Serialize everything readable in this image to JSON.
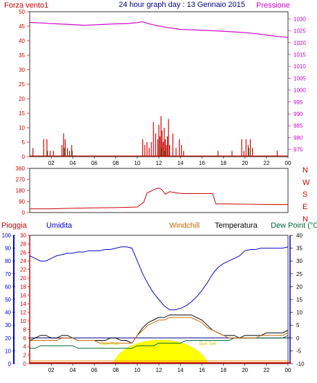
{
  "header": {
    "left_label": "Forza vento1",
    "title": "24 hour graph day : 13 Gennaio 2015",
    "right_label": "Pressione"
  },
  "colors": {
    "wind": "#cc0000",
    "gust_dark": "#000080",
    "gust_green": "#006600",
    "pressure": "#cc00cc",
    "direction": "#cc0000",
    "humidity": "#0000cc",
    "temperature": "#000000",
    "windchill": "#cc6600",
    "dewpoint": "#006633",
    "rain": "#cc0000",
    "sun": "#ffff00",
    "axis_left_blue": "#0000cc"
  },
  "legend_bottom": {
    "pioggia": "Pioggia",
    "umidita": "Umidita",
    "windchill": "Windchill",
    "temperatura": "Temperatura",
    "dewpoint": "Dew Point (°C"
  },
  "sun_labels": {
    "rise": "Sun Rise",
    "set": "Sun Set"
  },
  "x_ticks": [
    "02",
    "04",
    "06",
    "08",
    "10",
    "12",
    "14",
    "16",
    "18",
    "20",
    "22",
    "00"
  ],
  "x_bottom_ticks": [
    "02",
    "04",
    "06",
    "Sun R",
    "08",
    "10",
    "12",
    "14",
    "16",
    "18",
    "20",
    "22",
    "00"
  ],
  "chart_data": [
    {
      "type": "line",
      "name": "wind-pressure",
      "left_axis": {
        "ticks": [
          0,
          5,
          10,
          15,
          20,
          25,
          30,
          35,
          40,
          45,
          50
        ],
        "ylim": [
          0,
          50
        ]
      },
      "right_axis": {
        "ticks": [
          975,
          980,
          985,
          990,
          995,
          1000,
          1005,
          1010,
          1015,
          1020,
          1025,
          1030
        ],
        "ylim": [
          972,
          1033
        ]
      },
      "pressure": {
        "x": [
          0,
          1,
          2,
          3,
          4,
          5,
          6,
          7,
          8,
          9,
          10,
          10.5,
          11,
          12,
          13,
          14,
          15,
          16,
          17,
          18,
          19,
          20,
          21,
          22,
          23,
          24
        ],
        "y": [
          1028.5,
          1028.3,
          1028,
          1027.8,
          1027.6,
          1027.3,
          1027.5,
          1027.7,
          1027.9,
          1028,
          1028.4,
          1028.8,
          1028,
          1027,
          1026.2,
          1025.6,
          1025.4,
          1025.2,
          1025,
          1024.8,
          1024.5,
          1024.2,
          1023.8,
          1023.2,
          1022.6,
          1022.2
        ]
      },
      "wind_bars": {
        "x": [
          0.3,
          1.3,
          1.6,
          1.9,
          2.2,
          3.0,
          3.15,
          3.3,
          3.5,
          3.7,
          3.9,
          10.5,
          10.7,
          10.9,
          11.1,
          11.3,
          11.5,
          11.7,
          11.9,
          12.0,
          12.1,
          12.2,
          12.3,
          12.4,
          12.5,
          12.6,
          12.7,
          12.8,
          12.9,
          13.0,
          13.3,
          13.6,
          13.9,
          14.1,
          14.3,
          17.5,
          18.8,
          19.7,
          19.9,
          20.1,
          20.3,
          20.5,
          20.7,
          23.0
        ],
        "y": [
          3,
          6,
          6,
          2,
          2,
          4,
          8,
          6,
          3,
          2,
          4,
          6,
          4,
          5,
          3,
          5,
          12,
          8,
          6,
          11,
          7,
          14,
          9,
          5,
          10,
          6,
          4,
          7,
          13,
          4,
          8,
          3,
          6,
          4,
          2,
          2,
          2,
          6,
          2,
          6,
          4,
          6,
          3,
          2
        ]
      },
      "gust_bars": {
        "x": [
          1.6,
          3.15,
          3.9,
          12.2,
          12.5,
          20.3
        ],
        "y": [
          2,
          3,
          2,
          3,
          2,
          3
        ]
      }
    },
    {
      "type": "line",
      "name": "wind-direction",
      "left_axis": {
        "ticks": [
          0,
          90,
          180,
          270,
          360
        ],
        "ylim": [
          0,
          360
        ]
      },
      "right_labels": [
        "N",
        "W",
        "S",
        "E",
        "N"
      ],
      "x": [
        0,
        2,
        4,
        6,
        8,
        10,
        10.6,
        10.9,
        11.3,
        11.6,
        12.0,
        12.3,
        12.6,
        13.0,
        13.6,
        14.2,
        15,
        16,
        17,
        17.3,
        18,
        20,
        22,
        24
      ],
      "y": [
        30,
        30,
        35,
        38,
        40,
        45,
        85,
        160,
        175,
        190,
        200,
        185,
        150,
        170,
        160,
        155,
        155,
        155,
        155,
        70,
        70,
        68,
        65,
        65
      ]
    },
    {
      "type": "line",
      "name": "humidity-temperature",
      "left_axis_humidity": {
        "ticks": [
          0,
          10,
          20,
          30,
          40,
          50,
          60,
          70,
          80,
          90,
          100
        ],
        "ylim": [
          0,
          100
        ]
      },
      "left_axis_rain": {
        "ticks": [
          0,
          2,
          4,
          6,
          8,
          10,
          12,
          14,
          16,
          18,
          20,
          22,
          24,
          26,
          28,
          30
        ],
        "ylim": [
          0,
          30
        ]
      },
      "right_axis_temp": {
        "ticks": [
          -10,
          -5,
          0,
          5,
          10,
          15,
          20,
          25,
          30,
          35,
          40
        ],
        "ylim": [
          -10,
          40
        ]
      },
      "x": [
        0,
        0.5,
        1,
        1.5,
        2,
        2.5,
        3,
        3.5,
        4,
        4.5,
        5,
        5.5,
        6,
        6.5,
        7,
        7.5,
        8,
        8.5,
        9,
        9.5,
        10,
        10.5,
        11,
        11.5,
        12,
        12.5,
        13,
        13.5,
        14,
        14.5,
        15,
        15.5,
        16,
        16.5,
        17,
        17.5,
        18,
        18.5,
        19,
        19.5,
        20,
        20.5,
        21,
        21.5,
        22,
        22.5,
        23,
        23.5,
        24
      ],
      "series": [
        {
          "name": "Umidita",
          "values": [
            84,
            82,
            80,
            80,
            82,
            84,
            85,
            86,
            86,
            87,
            87,
            88,
            88,
            88,
            89,
            89,
            90,
            91,
            91,
            90,
            80,
            70,
            62,
            55,
            50,
            45,
            42,
            42,
            43,
            45,
            48,
            52,
            57,
            63,
            70,
            75,
            78,
            80,
            82,
            84,
            88,
            89,
            89,
            90,
            90,
            90,
            90,
            90,
            91
          ]
        },
        {
          "name": "Temperatura",
          "values": [
            -1,
            0,
            1,
            1,
            0,
            0,
            1,
            1,
            0,
            -1,
            -1,
            -1,
            -1,
            -1,
            -1,
            0,
            0,
            -1,
            -1,
            -2,
            1,
            4,
            6,
            7,
            8,
            8,
            9,
            9,
            9,
            9,
            9,
            8,
            7,
            5,
            3,
            2,
            1,
            1,
            1,
            0,
            1,
            1,
            1,
            1,
            2,
            2,
            2,
            2,
            3
          ]
        },
        {
          "name": "Dew Point",
          "values": [
            -4,
            -4,
            -3,
            -3,
            -3,
            -3,
            -3,
            -3,
            -3,
            -4,
            -4,
            -4,
            -4,
            -4,
            -4,
            -4,
            -4,
            -4,
            -4,
            -4,
            -3,
            -3,
            -3,
            -3,
            -2,
            -2,
            -2,
            -2,
            -2,
            -1,
            -1,
            -1,
            -1,
            -1,
            -1,
            -1,
            -1,
            -1,
            0,
            0,
            0,
            0,
            0,
            0,
            0,
            0,
            0,
            0,
            1
          ]
        },
        {
          "name": "Windchill",
          "values": [
            -1,
            -1,
            -1,
            -1,
            -1,
            -1,
            0,
            0,
            0,
            -1,
            -1,
            -1,
            -1,
            -2,
            -2,
            -2,
            -2,
            -2,
            -2,
            -2,
            1,
            3,
            5,
            6,
            7,
            7,
            8,
            8,
            8,
            8,
            8,
            7,
            6,
            4,
            3,
            2,
            1,
            0,
            0,
            0,
            0,
            0,
            0,
            1,
            1,
            1,
            1,
            1,
            2
          ]
        }
      ],
      "sun": {
        "rise_hour": 7.8,
        "set_hour": 16.5,
        "peak_temp_axis": 0
      }
    }
  ]
}
